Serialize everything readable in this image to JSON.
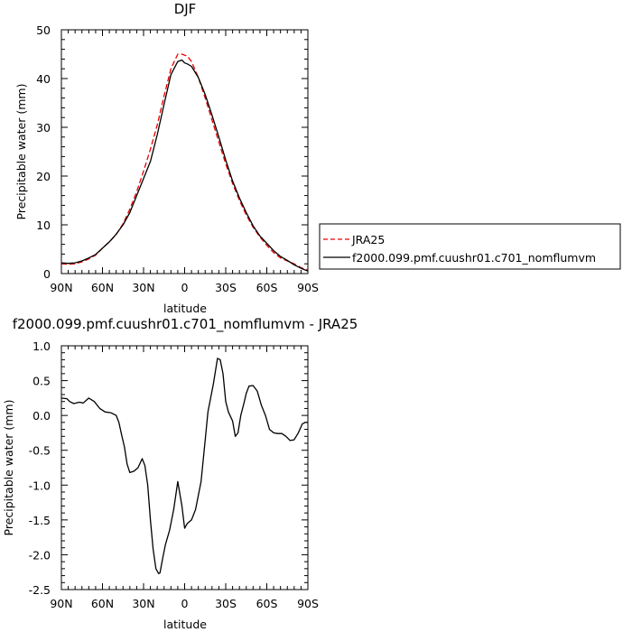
{
  "chart_data": [
    {
      "type": "line",
      "title": "DJF",
      "xlabel": "latitude",
      "ylabel": "Precipitable water (mm)",
      "xlim": [
        90,
        -90
      ],
      "ylim": [
        0,
        50
      ],
      "xticks": [
        {
          "value": 90,
          "label": "90N"
        },
        {
          "value": 60,
          "label": "60N"
        },
        {
          "value": 30,
          "label": "30N"
        },
        {
          "value": 0,
          "label": "0"
        },
        {
          "value": -30,
          "label": "30S"
        },
        {
          "value": -60,
          "label": "60S"
        },
        {
          "value": -90,
          "label": "90S"
        }
      ],
      "yticks": [
        {
          "value": 0,
          "label": "0"
        },
        {
          "value": 10,
          "label": "10"
        },
        {
          "value": 20,
          "label": "20"
        },
        {
          "value": 30,
          "label": "30"
        },
        {
          "value": 40,
          "label": "40"
        },
        {
          "value": 50,
          "label": "50"
        }
      ],
      "grid": false,
      "legend_position": "right",
      "series": [
        {
          "name": "JRA25",
          "color": "#e60000",
          "dash": "dashed",
          "x": [
            90,
            85,
            80,
            75,
            70,
            65,
            60,
            55,
            50,
            45,
            40,
            35,
            30,
            25,
            20,
            15,
            10,
            5,
            2,
            0,
            -2,
            -5,
            -10,
            -15,
            -20,
            -25,
            -30,
            -35,
            -40,
            -45,
            -50,
            -55,
            -60,
            -65,
            -70,
            -75,
            -80,
            -85,
            -90
          ],
          "y": [
            2.0,
            1.9,
            2.0,
            2.4,
            3.0,
            3.8,
            5.2,
            6.5,
            8.0,
            10.2,
            13.2,
            16.8,
            21.0,
            25.5,
            30.5,
            36.5,
            42.0,
            45.0,
            45.0,
            44.8,
            44.6,
            43.5,
            40.2,
            36.0,
            31.5,
            27.0,
            22.5,
            18.5,
            15.0,
            12.0,
            9.5,
            7.5,
            5.8,
            4.3,
            3.2,
            2.6,
            2.0,
            1.2,
            0.7
          ]
        },
        {
          "name": "f2000.099.pmf.cuushr01.c701_nomflumvm",
          "color": "#000000",
          "dash": "solid",
          "x": [
            90,
            85,
            80,
            75,
            70,
            65,
            60,
            55,
            50,
            45,
            40,
            35,
            30,
            25,
            20,
            15,
            10,
            5,
            2,
            0,
            -2,
            -5,
            -10,
            -15,
            -20,
            -25,
            -30,
            -35,
            -40,
            -45,
            -50,
            -55,
            -60,
            -65,
            -70,
            -75,
            -80,
            -85,
            -90
          ],
          "y": [
            2.2,
            2.1,
            2.2,
            2.6,
            3.2,
            3.9,
            5.2,
            6.5,
            8.1,
            10.0,
            12.5,
            16.0,
            19.5,
            23.0,
            28.5,
            34.8,
            40.8,
            43.5,
            43.8,
            43.2,
            43.0,
            42.5,
            40.2,
            36.7,
            32.5,
            28.0,
            23.3,
            19.0,
            15.5,
            12.5,
            9.8,
            7.7,
            6.2,
            4.7,
            3.5,
            2.7,
            1.8,
            1.1,
            0.5
          ]
        }
      ]
    },
    {
      "type": "line",
      "title": "f2000.099.pmf.cuushr01.c701_nomflumvm  -  JRA25",
      "xlabel": "latitude",
      "ylabel": "Precipitable water (mm)",
      "xlim": [
        90,
        -90
      ],
      "ylim": [
        -2.5,
        1.0
      ],
      "xticks": [
        {
          "value": 90,
          "label": "90N"
        },
        {
          "value": 60,
          "label": "60N"
        },
        {
          "value": 30,
          "label": "30N"
        },
        {
          "value": 0,
          "label": "0"
        },
        {
          "value": -30,
          "label": "30S"
        },
        {
          "value": -60,
          "label": "60S"
        },
        {
          "value": -90,
          "label": "90S"
        }
      ],
      "yticks": [
        {
          "value": 1.0,
          "label": "1.0"
        },
        {
          "value": 0.5,
          "label": "0.5"
        },
        {
          "value": 0.0,
          "label": "0.0"
        },
        {
          "value": -0.5,
          "label": "-0.5"
        },
        {
          "value": -1.0,
          "label": "-1.0"
        },
        {
          "value": -1.5,
          "label": "-1.5"
        },
        {
          "value": -2.0,
          "label": "-2.0"
        },
        {
          "value": -2.5,
          "label": "-2.5"
        }
      ],
      "grid": false,
      "series": [
        {
          "color": "#000000",
          "dash": "solid",
          "x": [
            90,
            86,
            84,
            81,
            77,
            74,
            70,
            66,
            62,
            58,
            54,
            50,
            48,
            46,
            44,
            42,
            40,
            37,
            34,
            31,
            29,
            27,
            25,
            23,
            21,
            19,
            18,
            16,
            14,
            11,
            8,
            5,
            2,
            0,
            -2,
            -5,
            -8,
            -12,
            -15,
            -17,
            -19,
            -21,
            -24,
            -26,
            -28,
            -30,
            -32,
            -35,
            -37,
            -39,
            -41,
            -43,
            -45,
            -47,
            -50,
            -53,
            -56,
            -59,
            -62,
            -65,
            -68,
            -71,
            -74,
            -77,
            -80,
            -83,
            -86,
            -88,
            -90
          ],
          "y": [
            0.25,
            0.24,
            0.2,
            0.17,
            0.19,
            0.18,
            0.25,
            0.2,
            0.1,
            0.05,
            0.04,
            0.0,
            -0.1,
            -0.28,
            -0.45,
            -0.7,
            -0.82,
            -0.8,
            -0.75,
            -0.62,
            -0.72,
            -1.0,
            -1.5,
            -1.92,
            -2.2,
            -2.27,
            -2.26,
            -2.05,
            -1.85,
            -1.65,
            -1.35,
            -0.95,
            -1.3,
            -1.62,
            -1.55,
            -1.5,
            -1.35,
            -0.95,
            -0.35,
            0.05,
            0.25,
            0.45,
            0.82,
            0.8,
            0.6,
            0.2,
            0.05,
            -0.08,
            -0.3,
            -0.25,
            0.0,
            0.15,
            0.32,
            0.42,
            0.43,
            0.35,
            0.15,
            0.0,
            -0.2,
            -0.25,
            -0.26,
            -0.26,
            -0.3,
            -0.36,
            -0.35,
            -0.25,
            -0.12,
            -0.1,
            -0.1
          ]
        }
      ]
    }
  ]
}
